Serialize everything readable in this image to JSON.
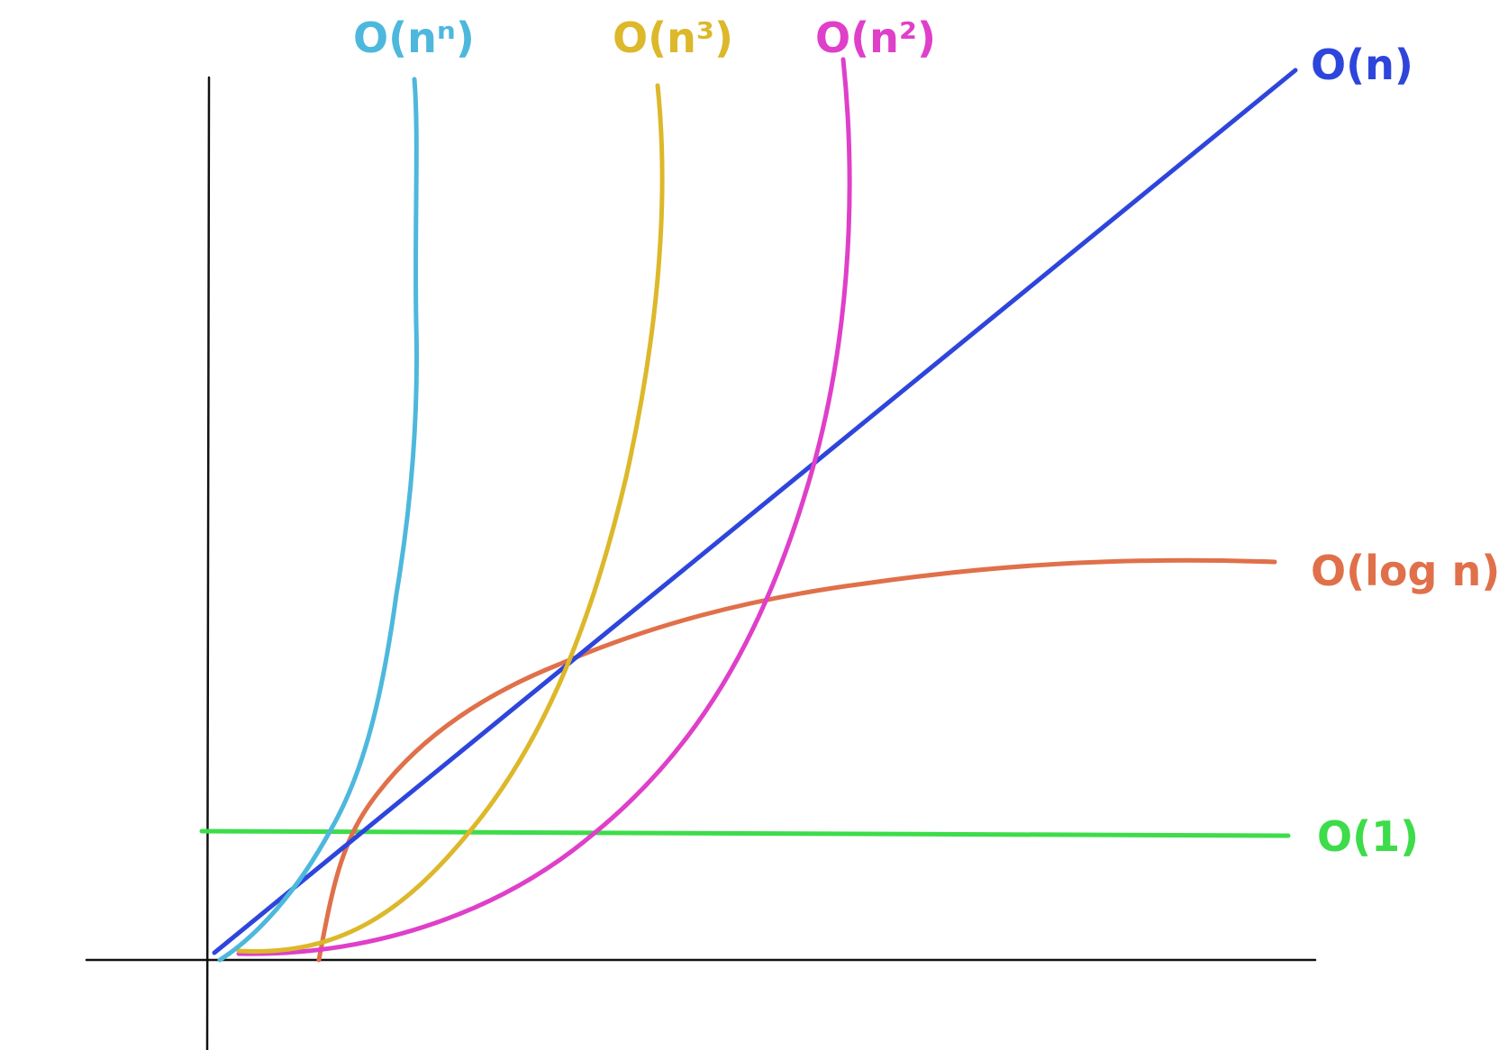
{
  "chart_data": {
    "type": "line",
    "title": "",
    "xlabel": "",
    "ylabel": "",
    "grid": false,
    "legend": "inline labels at curve ends",
    "series": [
      {
        "name": "O(n^n)",
        "label": "O(nⁿ)",
        "color": "#4db8dc"
      },
      {
        "name": "O(n^3)",
        "label": "O(n³)",
        "color": "#dcb82a"
      },
      {
        "name": "O(n^2)",
        "label": "O(n²)",
        "color": "#df3fc9"
      },
      {
        "name": "O(n)",
        "label": "O(n)",
        "color": "#2e45dc"
      },
      {
        "name": "O(log n)",
        "label": "O(log n)",
        "color": "#e0704a"
      },
      {
        "name": "O(1)",
        "label": "O(1)",
        "color": "#3ddc4a"
      }
    ]
  }
}
